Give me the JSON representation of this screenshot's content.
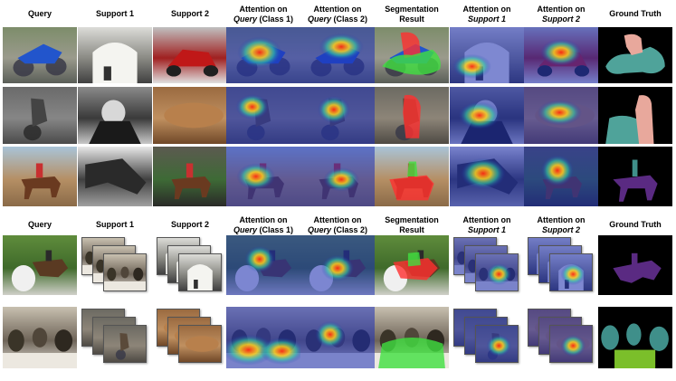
{
  "headers_top": [
    {
      "text": "Query",
      "italic": ""
    },
    {
      "text": "Support 1",
      "italic": ""
    },
    {
      "text": "Support 2",
      "italic": ""
    },
    {
      "text": "Attention on",
      "italic": "Query",
      "suffix": " (Class 1)"
    },
    {
      "text": "Attention on",
      "italic": "Query",
      "suffix": " (Class 2)"
    },
    {
      "text": "Segmentation",
      "line2": "Result"
    },
    {
      "text": "Attention on",
      "italic": "Support 1"
    },
    {
      "text": "Attention on",
      "italic": "Support 2"
    },
    {
      "text": "Ground Truth"
    }
  ],
  "headers_bottom": [
    {
      "text": "Query"
    },
    {
      "text": "Support 1"
    },
    {
      "text": "Support 2"
    },
    {
      "text": "Attention on",
      "italic": "Query",
      "suffix": " (Class 1)"
    },
    {
      "text": "Attention on",
      "italic": "Query",
      "suffix": " (Class 2)"
    },
    {
      "text": "Segmentation",
      "line2": "Result"
    },
    {
      "text": "Attention on",
      "italic": "Support 1"
    },
    {
      "text": "Attention on",
      "italic": "Support 2"
    },
    {
      "text": "Ground Truth"
    }
  ],
  "rows_top": [
    {
      "subject": "motorcycle-racer",
      "gt_colors": [
        "#e8a89c",
        "#4fa39a"
      ]
    },
    {
      "subject": "motocross-rider",
      "gt_colors": [
        "#e8a89c",
        "#4fa39a"
      ]
    },
    {
      "subject": "horse-rider",
      "gt_colors": [
        "#5a2a82",
        "#3f8f8a"
      ]
    }
  ],
  "rows_bottom": [
    {
      "subject": "horse-jumping",
      "gt_colors": [
        "#5a2a82",
        "#4fa39a"
      ]
    },
    {
      "subject": "people-at-table",
      "gt_colors": [
        "#3f8f8a",
        "#7bbf2a"
      ]
    }
  ],
  "colors": {
    "heat_low": "#1e2fb8",
    "heat_mid": "#33d1a0",
    "heat_high": "#ff2a10",
    "seg_red": "#ff3030",
    "seg_green": "#40e040"
  }
}
